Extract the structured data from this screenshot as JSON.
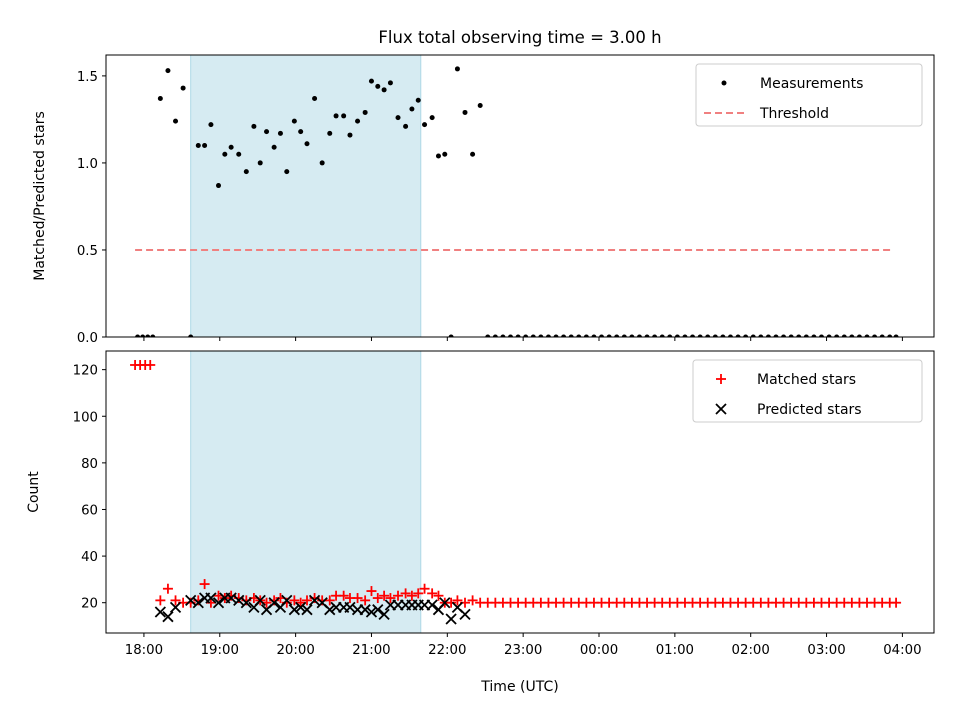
{
  "colors": {
    "shade": "#add8e6",
    "threshold": "#f08080",
    "matched": "#ff0000",
    "predicted": "#000000",
    "measurement": "#000000"
  },
  "chart_data": [
    {
      "type": "scatter",
      "title": "Flux total observing time = 3.00 h",
      "xlabel": "",
      "ylabel": "Matched/Predicted stars",
      "xlim": [
        "17:30",
        "04:25"
      ],
      "ylim": [
        0,
        1.62
      ],
      "x_ticks": [
        "18:00",
        "19:00",
        "20:00",
        "21:00",
        "22:00",
        "23:00",
        "00:00",
        "01:00",
        "02:00",
        "03:00",
        "04:00"
      ],
      "y_ticks": [
        "0.0",
        "0.5",
        "1.0",
        "1.5"
      ],
      "shaded_interval": [
        "18:37",
        "21:39"
      ],
      "threshold": 0.5,
      "threshold_range": [
        "17:53",
        "03:53"
      ],
      "legend_position": "upper right",
      "legend": [
        "Measurements",
        "Threshold"
      ],
      "series": [
        {
          "name": "Measurements",
          "x": [
            "17:55",
            "17:59",
            "18:03",
            "18:07",
            "18:13",
            "18:19",
            "18:25",
            "18:31",
            "18:37",
            "18:43",
            "18:48",
            "18:53",
            "18:59",
            "19:04",
            "19:09",
            "19:15",
            "19:21",
            "19:27",
            "19:32",
            "19:37",
            "19:43",
            "19:48",
            "19:53",
            "19:59",
            "20:04",
            "20:09",
            "20:15",
            "20:21",
            "20:27",
            "20:32",
            "20:38",
            "20:43",
            "20:49",
            "20:55",
            "21:00",
            "21:05",
            "21:10",
            "21:15",
            "21:21",
            "21:27",
            "21:32",
            "21:37",
            "21:42",
            "21:48",
            "21:53",
            "21:58",
            "22:03",
            "22:08",
            "22:14",
            "22:20",
            "22:26",
            "22:32",
            "22:38",
            "22:44",
            "22:50",
            "22:56",
            "23:02",
            "23:08",
            "23:14",
            "23:20",
            "23:26",
            "23:32",
            "23:38",
            "23:44",
            "23:50",
            "23:56",
            "00:02",
            "00:08",
            "00:14",
            "00:20",
            "00:26",
            "00:32",
            "00:38",
            "00:44",
            "00:50",
            "00:56",
            "01:02",
            "01:08",
            "01:14",
            "01:20",
            "01:26",
            "01:32",
            "01:38",
            "01:44",
            "01:50",
            "01:56",
            "02:02",
            "02:08",
            "02:14",
            "02:20",
            "02:26",
            "02:32",
            "02:38",
            "02:44",
            "02:50",
            "02:56",
            "03:02",
            "03:08",
            "03:14",
            "03:20",
            "03:26",
            "03:32",
            "03:38",
            "03:44",
            "03:50",
            "03:55"
          ],
          "y": [
            0,
            0,
            0,
            0,
            1.37,
            1.53,
            1.24,
            1.43,
            0,
            1.1,
            1.1,
            1.22,
            0.87,
            1.05,
            1.09,
            1.05,
            0.95,
            1.21,
            1.0,
            1.18,
            1.09,
            1.17,
            0.95,
            1.24,
            1.18,
            1.11,
            1.37,
            1.0,
            1.17,
            1.27,
            1.27,
            1.16,
            1.24,
            1.29,
            1.47,
            1.44,
            1.42,
            1.46,
            1.26,
            1.21,
            1.31,
            1.36,
            1.22,
            1.26,
            1.04,
            1.05,
            0,
            1.54,
            1.29,
            1.05,
            1.33,
            0,
            0,
            0,
            0,
            0,
            0,
            0,
            0,
            0,
            0,
            0,
            0,
            0,
            0,
            0,
            0,
            0,
            0,
            0,
            0,
            0,
            0,
            0,
            0,
            0,
            0,
            0,
            0,
            0,
            0,
            0,
            0,
            0,
            0,
            0,
            0,
            0,
            0,
            0,
            0,
            0,
            0,
            0,
            0,
            0,
            0,
            0,
            0,
            0,
            0,
            0,
            0,
            0,
            0,
            0
          ]
        }
      ]
    },
    {
      "type": "scatter",
      "title": "",
      "xlabel": "Time (UTC)",
      "ylabel": "Count",
      "xlim": [
        "17:30",
        "04:25"
      ],
      "ylim": [
        7,
        128
      ],
      "x_ticks": [
        "18:00",
        "19:00",
        "20:00",
        "21:00",
        "22:00",
        "23:00",
        "00:00",
        "01:00",
        "02:00",
        "03:00",
        "04:00"
      ],
      "y_ticks": [
        "20",
        "40",
        "60",
        "80",
        "100",
        "120"
      ],
      "shaded_interval": [
        "18:37",
        "21:39"
      ],
      "legend_position": "upper right",
      "legend": [
        "Matched stars",
        "Predicted stars"
      ],
      "series": [
        {
          "name": "Matched stars",
          "x": [
            "17:53",
            "17:57",
            "18:01",
            "18:05",
            "18:13",
            "18:19",
            "18:25",
            "18:31",
            "18:37",
            "18:43",
            "18:48",
            "18:53",
            "18:59",
            "19:04",
            "19:09",
            "19:15",
            "19:21",
            "19:27",
            "19:32",
            "19:37",
            "19:43",
            "19:48",
            "19:53",
            "19:59",
            "20:04",
            "20:09",
            "20:15",
            "20:21",
            "20:27",
            "20:32",
            "20:38",
            "20:43",
            "20:49",
            "20:55",
            "21:00",
            "21:05",
            "21:10",
            "21:15",
            "21:21",
            "21:27",
            "21:32",
            "21:37",
            "21:42",
            "21:48",
            "21:53",
            "21:58",
            "22:03",
            "22:08",
            "22:14",
            "22:20",
            "22:26",
            "22:32",
            "22:38",
            "22:44",
            "22:50",
            "22:56",
            "23:02",
            "23:08",
            "23:14",
            "23:20",
            "23:26",
            "23:32",
            "23:38",
            "23:44",
            "23:50",
            "23:56",
            "00:02",
            "00:08",
            "00:14",
            "00:20",
            "00:26",
            "00:32",
            "00:38",
            "00:44",
            "00:50",
            "00:56",
            "01:02",
            "01:08",
            "01:14",
            "01:20",
            "01:26",
            "01:32",
            "01:38",
            "01:44",
            "01:50",
            "01:56",
            "02:02",
            "02:08",
            "02:14",
            "02:20",
            "02:26",
            "02:32",
            "02:38",
            "02:44",
            "02:50",
            "02:56",
            "03:02",
            "03:08",
            "03:14",
            "03:20",
            "03:26",
            "03:32",
            "03:38",
            "03:44",
            "03:50",
            "03:55"
          ],
          "y": [
            122,
            122,
            122,
            122,
            21,
            26,
            21,
            20,
            20,
            21,
            28,
            20,
            23,
            22,
            23,
            22,
            21,
            22,
            21,
            20,
            21,
            22,
            20,
            21,
            20,
            21,
            22,
            21,
            21,
            23,
            23,
            22,
            22,
            21,
            25,
            22,
            23,
            22,
            23,
            24,
            23,
            24,
            26,
            24,
            23,
            20,
            20,
            21,
            20,
            21,
            20,
            20,
            20,
            20,
            20,
            20,
            20,
            20,
            20,
            20,
            20,
            20,
            20,
            20,
            20,
            20,
            20,
            20,
            20,
            20,
            20,
            20,
            20,
            20,
            20,
            20,
            20,
            20,
            20,
            20,
            20,
            20,
            20,
            20,
            20,
            20,
            20,
            20,
            20,
            20,
            20,
            20,
            20,
            20,
            20,
            20,
            20,
            20,
            20,
            20,
            20,
            20,
            20,
            20,
            20,
            20
          ]
        },
        {
          "name": "Predicted stars",
          "x": [
            "18:13",
            "18:19",
            "18:25",
            "18:37",
            "18:43",
            "18:48",
            "18:53",
            "18:59",
            "19:04",
            "19:09",
            "19:15",
            "19:21",
            "19:27",
            "19:32",
            "19:37",
            "19:43",
            "19:48",
            "19:53",
            "19:59",
            "20:04",
            "20:09",
            "20:15",
            "20:21",
            "20:27",
            "20:32",
            "20:38",
            "20:43",
            "20:49",
            "20:55",
            "21:00",
            "21:05",
            "21:10",
            "21:15",
            "21:21",
            "21:27",
            "21:32",
            "21:37",
            "21:42",
            "21:48",
            "21:53",
            "21:58",
            "22:03",
            "22:08",
            "22:14"
          ],
          "y": [
            16,
            14,
            18,
            21,
            20,
            22,
            22,
            20,
            22,
            22,
            21,
            20,
            18,
            21,
            17,
            20,
            18,
            21,
            17,
            18,
            17,
            21,
            20,
            17,
            18,
            18,
            18,
            17,
            17,
            16,
            17,
            15,
            19,
            19,
            19,
            19,
            19,
            19,
            19,
            17,
            20,
            13,
            18,
            15
          ]
        }
      ]
    }
  ]
}
